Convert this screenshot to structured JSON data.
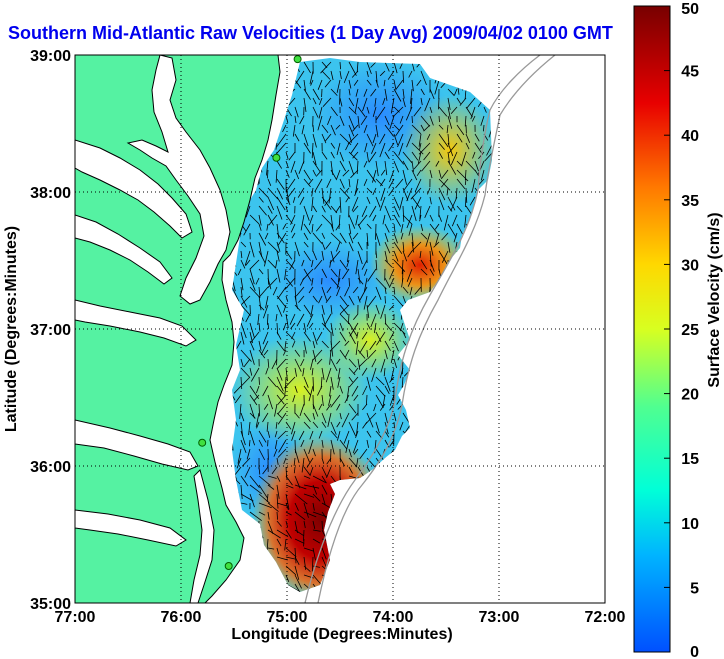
{
  "title": "Southern Mid-Atlantic Raw Velocities (1 Day Avg) 2009/04/02 0100 GMT",
  "map": {
    "xlabel": "Longitude (Degrees:Minutes)",
    "ylabel": "Latitude (Degrees:Minutes)",
    "lon_range": [
      -77,
      -72
    ],
    "lat_range": [
      35,
      39
    ],
    "x_ticks": [
      {
        "value": -77,
        "label": "77:00"
      },
      {
        "value": -76,
        "label": "76:00"
      },
      {
        "value": -75,
        "label": "75:00"
      },
      {
        "value": -74,
        "label": "74:00"
      },
      {
        "value": -73,
        "label": "73:00"
      },
      {
        "value": -72,
        "label": "72:00"
      }
    ],
    "y_ticks": [
      {
        "value": 39,
        "label": "39:00"
      },
      {
        "value": 38,
        "label": "38:00"
      },
      {
        "value": 37,
        "label": "37:00"
      },
      {
        "value": 36,
        "label": "36:00"
      },
      {
        "value": 35,
        "label": "35:00"
      }
    ],
    "grid": "dotted",
    "land_color": "#55f2a2",
    "coast_stations": [
      {
        "lon": -74.9,
        "lat": 38.97
      },
      {
        "lon": -75.1,
        "lat": 38.25
      },
      {
        "lon": -75.8,
        "lat": 36.17
      },
      {
        "lon": -75.55,
        "lat": 35.27
      }
    ]
  },
  "colorbar": {
    "label": "Surface Velocity (cm/s)",
    "min": 0,
    "max": 50,
    "ticks": [
      "50",
      "45",
      "40",
      "35",
      "30",
      "25",
      "20",
      "15",
      "10",
      "5",
      "0"
    ],
    "colors": [
      "#0050ff",
      "#00c8ff",
      "#00ffd0",
      "#60ff80",
      "#e0ff20",
      "#ffc800",
      "#ff5a00",
      "#e00000",
      "#800000"
    ]
  }
}
